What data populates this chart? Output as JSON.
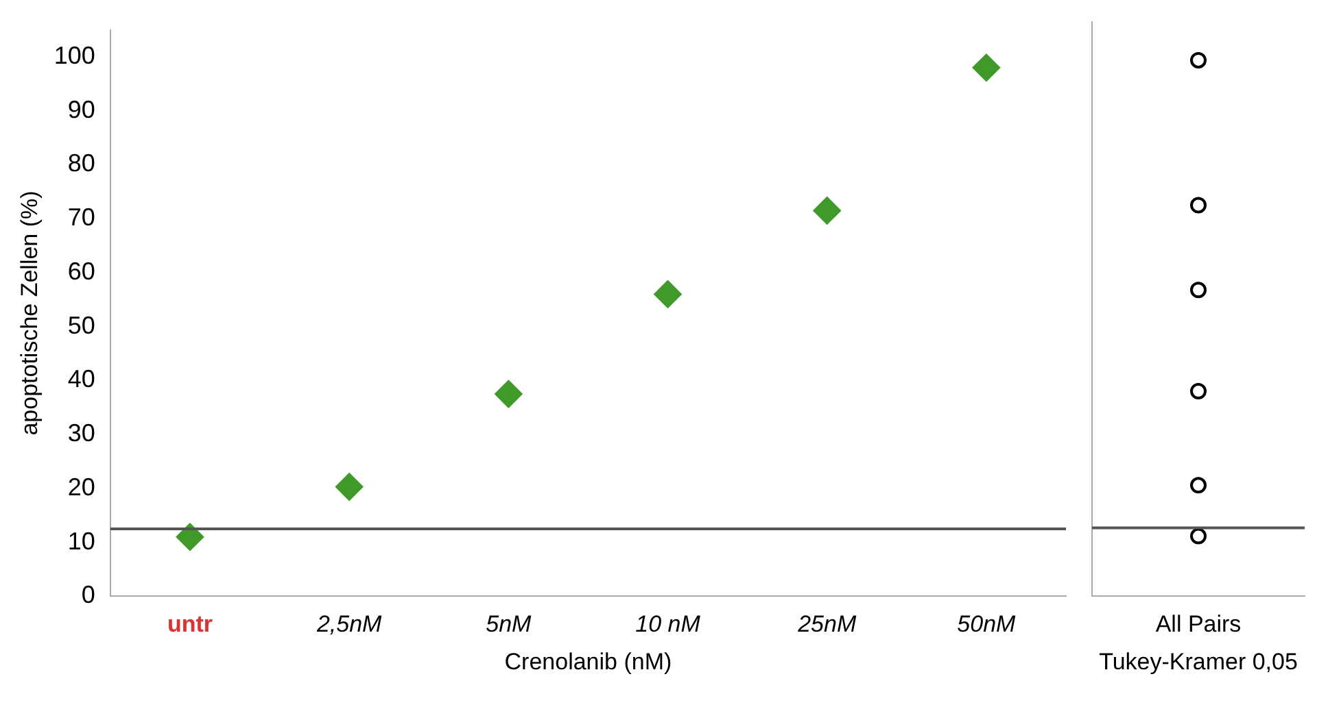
{
  "chart_data": [
    {
      "type": "scatter",
      "xlabel": "Crenolanib (nM)",
      "ylabel": "apoptotische Zellen (%)",
      "categories": [
        "untr",
        "2,5nM",
        "5nM",
        "10 nM",
        "25nM",
        "50nM"
      ],
      "series": [
        {
          "color": "#3f9a2a",
          "values": [
            11,
            20.3,
            37.5,
            56,
            71.5,
            98
          ]
        }
      ],
      "ylim": [
        0,
        105
      ],
      "yticks": [
        0,
        10,
        20,
        30,
        40,
        50,
        60,
        70,
        80,
        90,
        100
      ],
      "marker": "diamond",
      "grid": false,
      "legend": false,
      "ref_lines": [
        {
          "axis": "y",
          "value": 12.5,
          "color": "#555555"
        }
      ]
    },
    {
      "type": "scatter",
      "xlabel": "Tukey-Kramer 0,05",
      "categories": [
        "All Pairs"
      ],
      "series": [
        {
          "color": "#000000",
          "x": [
            "All Pairs",
            "All Pairs",
            "All Pairs",
            "All Pairs",
            "All Pairs",
            "All Pairs"
          ],
          "values": [
            11,
            20.3,
            37.5,
            56,
            71.5,
            98
          ]
        }
      ],
      "ylim": [
        0,
        105
      ],
      "tick_labels": "x",
      "marker": "circle",
      "grid": false,
      "legend": false,
      "ref_lines": [
        {
          "axis": "y",
          "value": 12.5,
          "color": "#555555"
        }
      ]
    }
  ]
}
